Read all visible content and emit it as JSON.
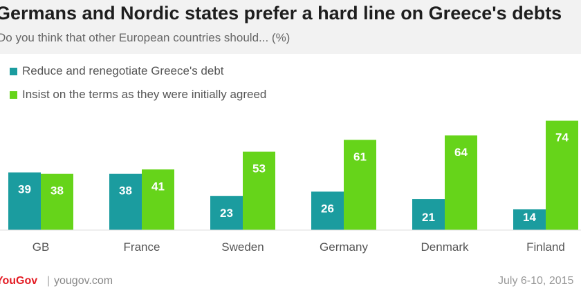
{
  "header": {
    "title": "Germans and Nordic states prefer a hard line on Greece's debts",
    "subtitle": "Do you think that other European countries should... (%)"
  },
  "footer": {
    "brand": "YouGov",
    "separator": "|",
    "url": "yougov.com",
    "date": "July 6-10, 2015"
  },
  "colors": {
    "reduce": "#1b9c9f",
    "insist": "#66d41a"
  },
  "chart_data": {
    "type": "bar",
    "title": "Germans and Nordic states prefer a hard line on Greece's debts",
    "subtitle": "Do you think that other European countries should... (%)",
    "categories": [
      "GB",
      "France",
      "Sweden",
      "Germany",
      "Denmark",
      "Finland"
    ],
    "series": [
      {
        "name": "Reduce and renegotiate Greece's debt",
        "values": [
          39,
          38,
          23,
          26,
          21,
          14
        ]
      },
      {
        "name": "Insist on the terms as they were initially agreed",
        "values": [
          38,
          41,
          53,
          61,
          64,
          74
        ]
      }
    ],
    "ylim": [
      0,
      80
    ],
    "grid": false,
    "legend": "top-left",
    "data_labels": true
  }
}
